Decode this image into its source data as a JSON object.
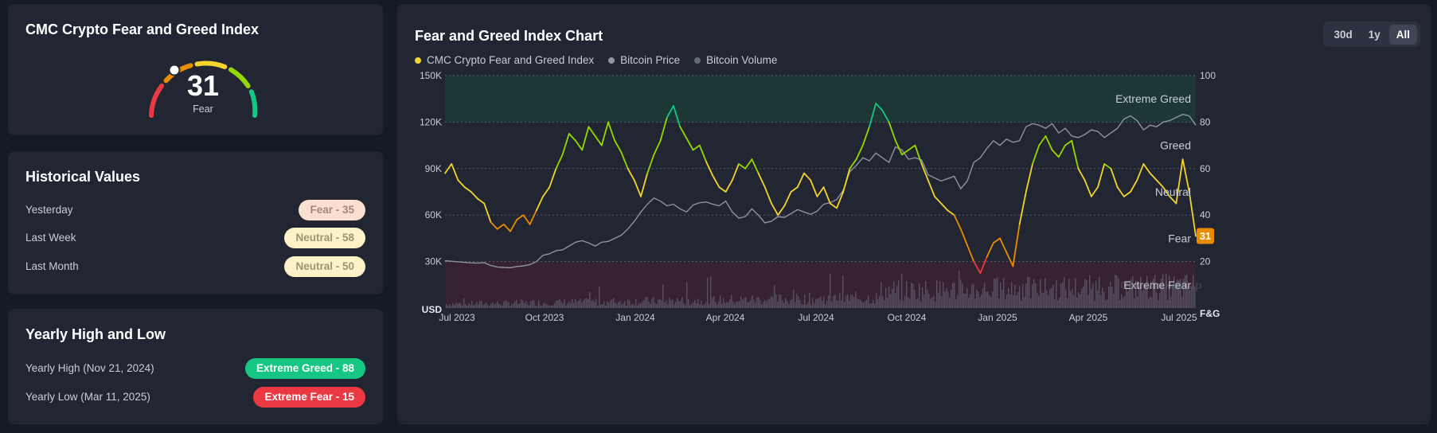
{
  "gauge": {
    "title": "CMC Crypto Fear and Greed Index",
    "value": "31",
    "classification": "Fear",
    "value_number": 31
  },
  "historical": {
    "title": "Historical Values",
    "rows": [
      {
        "label": "Yesterday",
        "badge": "Fear - 35"
      },
      {
        "label": "Last Week",
        "badge": "Neutral - 58"
      },
      {
        "label": "Last Month",
        "badge": "Neutral - 50"
      }
    ]
  },
  "yearly": {
    "title": "Yearly High and Low",
    "rows": [
      {
        "label": "Yearly High (Nov 21, 2024)",
        "badge": "Extreme Greed - 88"
      },
      {
        "label": "Yearly Low (Mar 11, 2025)",
        "badge": "Extreme Fear - 15"
      }
    ]
  },
  "chart": {
    "title": "Fear and Greed Index Chart",
    "legend": [
      "CMC Crypto Fear and Greed Index",
      "Bitcoin Price",
      "Bitcoin Volume"
    ],
    "ranges": [
      "30d",
      "1y",
      "All"
    ],
    "active_range": "All",
    "watermark": "CoinMarketCap",
    "current_badge": "31"
  },
  "colors": {
    "extreme_fear": "#ea3943",
    "fear": "#ea8c00",
    "neutral": "#f3d42f",
    "greed": "#93d900",
    "extreme_greed": "#16c784",
    "price_line": "#8e93a1",
    "card_bg": "#222633",
    "page_bg": "#151a27"
  },
  "chart_data": {
    "type": "line",
    "title": "Fear and Greed Index Chart",
    "left_axis": {
      "label": "USD",
      "ticks": [
        "150K",
        "120K",
        "90K",
        "60K",
        "30K"
      ],
      "range": [
        0,
        150000
      ]
    },
    "right_axis": {
      "label": "F&G",
      "ticks": [
        "100",
        "80",
        "60",
        "40",
        "20"
      ],
      "range": [
        0,
        100
      ]
    },
    "x_labels": [
      "Jul 2023",
      "Oct 2023",
      "Jan 2024",
      "Apr 2024",
      "Jul 2024",
      "Oct 2024",
      "Jan 2025",
      "Apr 2025",
      "Jul 2025"
    ],
    "zones": [
      {
        "label": "Extreme Greed",
        "from": 80,
        "to": 100
      },
      {
        "label": "Greed",
        "from": 60,
        "to": 80
      },
      {
        "label": "Neutral",
        "from": 40,
        "to": 60
      },
      {
        "label": "Fear",
        "from": 20,
        "to": 40
      },
      {
        "label": "Extreme Fear",
        "from": 0,
        "to": 20
      }
    ],
    "series": [
      {
        "name": "CMC Crypto Fear and Greed Index",
        "axis": "right",
        "values": [
          58,
          62,
          55,
          52,
          50,
          47,
          45,
          37,
          34,
          36,
          33,
          38,
          40,
          36,
          42,
          48,
          52,
          60,
          66,
          75,
          72,
          68,
          78,
          74,
          70,
          80,
          72,
          67,
          60,
          55,
          48,
          58,
          66,
          72,
          82,
          87,
          78,
          73,
          68,
          70,
          63,
          57,
          52,
          50,
          55,
          62,
          60,
          64,
          58,
          52,
          45,
          40,
          44,
          50,
          52,
          58,
          55,
          48,
          52,
          45,
          43,
          50,
          60,
          64,
          70,
          78,
          88,
          85,
          80,
          72,
          66,
          68,
          70,
          62,
          55,
          48,
          45,
          42,
          40,
          34,
          27,
          20,
          15,
          22,
          28,
          30,
          24,
          18,
          36,
          50,
          62,
          70,
          74,
          68,
          65,
          70,
          72,
          60,
          55,
          48,
          52,
          62,
          60,
          52,
          48,
          50,
          55,
          62,
          58,
          55,
          52,
          48,
          45,
          64,
          50,
          31
        ]
      },
      {
        "name": "Bitcoin Price",
        "axis": "left",
        "values": [
          30500,
          30200,
          29800,
          29500,
          29200,
          29000,
          29300,
          27500,
          26500,
          26200,
          26000,
          26800,
          27200,
          28000,
          30000,
          34000,
          35000,
          37000,
          37500,
          40000,
          42500,
          43500,
          42000,
          40000,
          42500,
          43000,
          45000,
          47000,
          51000,
          56000,
          62000,
          67000,
          71000,
          69000,
          66000,
          67000,
          64000,
          62000,
          66500,
          68000,
          68500,
          67000,
          66000,
          69000,
          62000,
          58000,
          59000,
          64000,
          60000,
          55000,
          56000,
          59000,
          58500,
          61000,
          63500,
          62000,
          60500,
          62500,
          67000,
          68000,
          70000,
          76000,
          88000,
          92000,
          97000,
          95000,
          100000,
          97000,
          94000,
          104000,
          102000,
          96000,
          97000,
          95500,
          86000,
          84000,
          82000,
          83500,
          85000,
          77000,
          82000,
          94000,
          97000,
          103000,
          108000,
          105000,
          109000,
          107000,
          108000,
          117000,
          119000,
          118000,
          116000,
          119000,
          113000,
          116000,
          111000,
          110000,
          112000,
          115000,
          114000,
          110000,
          113000,
          116000,
          122000,
          124000,
          121000,
          115000,
          118000,
          117000,
          120000,
          121000,
          123000,
          125000,
          124000,
          118000
        ]
      }
    ]
  }
}
